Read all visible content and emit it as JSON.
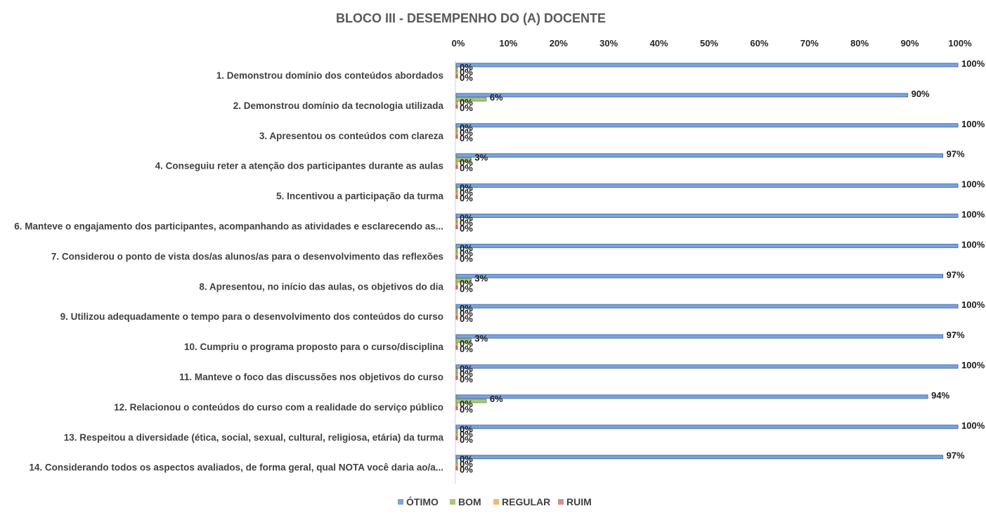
{
  "chart_data": {
    "type": "bar",
    "orientation": "horizontal",
    "title": "BLOCO III - DESEMPENHO DO (A) DOCENTE",
    "xlim": [
      0,
      100
    ],
    "x_ticks": [
      "0%",
      "10%",
      "20%",
      "30%",
      "40%",
      "50%",
      "60%",
      "70%",
      "80%",
      "90%",
      "100%"
    ],
    "x_tick_values": [
      0,
      10,
      20,
      30,
      40,
      50,
      60,
      70,
      80,
      90,
      100
    ],
    "categories": [
      "1. Demonstrou domínio dos conteúdos abordados",
      "2. Demonstrou domínio da tecnologia utilizada",
      "3. Apresentou os conteúdos com clareza",
      "4. Conseguiu reter a atenção dos participantes durante as aulas",
      "5. Incentivou a participação da turma",
      "6. Manteve o engajamento dos participantes, acompanhando as atividades e esclarecendo as...",
      "7. Considerou o ponto de vista dos/as alunos/as para o desenvolvimento das reflexões",
      "8. Apresentou, no início das aulas, os objetivos do dia",
      "9. Utilizou adequadamente o tempo para o desenvolvimento dos conteúdos do curso",
      "10. Cumpriu o programa proposto para o curso/disciplina",
      "11. Manteve o foco das discussões nos objetivos do curso",
      "12. Relacionou o conteúdos do curso com a realidade do serviço público",
      "13. Respeitou a diversidade (ética, social, sexual, cultural, religiosa, etária) da turma",
      "14. Considerando todos os aspectos avaliados, de forma geral, qual NOTA você daria ao/a..."
    ],
    "series": [
      {
        "name": "ÓTIMO",
        "color": "#7BA3DC",
        "stroke": "#4A72B0",
        "values": [
          100,
          90,
          100,
          97,
          100,
          100,
          100,
          97,
          100,
          97,
          100,
          94,
          100,
          97
        ]
      },
      {
        "name": "BOM",
        "color": "#A9C87A",
        "stroke": "#7A9A4A",
        "values": [
          0,
          6,
          0,
          3,
          0,
          0,
          0,
          3,
          0,
          3,
          0,
          6,
          0,
          0
        ]
      },
      {
        "name": "REGULAR",
        "color": "#F5B770",
        "stroke": "#C8893E",
        "values": [
          0,
          0,
          0,
          0,
          0,
          0,
          0,
          0,
          0,
          0,
          0,
          0,
          0,
          0
        ]
      },
      {
        "name": "RUIM",
        "color": "#D98E8A",
        "stroke": "#A85A56",
        "values": [
          0,
          0,
          0,
          0,
          0,
          0,
          0,
          0,
          0,
          0,
          0,
          0,
          0,
          0
        ]
      }
    ],
    "value_labels": [
      [
        "100%",
        "0%",
        "0%",
        "0%"
      ],
      [
        "90%",
        "6%",
        "0%",
        "0%"
      ],
      [
        "100%",
        "0%",
        "0%",
        "0%"
      ],
      [
        "97%",
        "3%",
        "0%",
        "0%"
      ],
      [
        "100%",
        "0%",
        "0%",
        "0%"
      ],
      [
        "100%",
        "0%",
        "0%",
        "0%"
      ],
      [
        "100%",
        "0%",
        "0%",
        "0%"
      ],
      [
        "97%",
        "3%",
        "0%",
        "0%"
      ],
      [
        "100%",
        "0%",
        "0%",
        "0%"
      ],
      [
        "97%",
        "3%",
        "0%",
        "0%"
      ],
      [
        "100%",
        "0%",
        "0%",
        "0%"
      ],
      [
        "94%",
        "6%",
        "0%",
        "0%"
      ],
      [
        "100%",
        "0%",
        "0%",
        "0%"
      ],
      [
        "97%",
        "0%",
        "0%",
        "0%"
      ]
    ],
    "legend_position": "bottom"
  }
}
